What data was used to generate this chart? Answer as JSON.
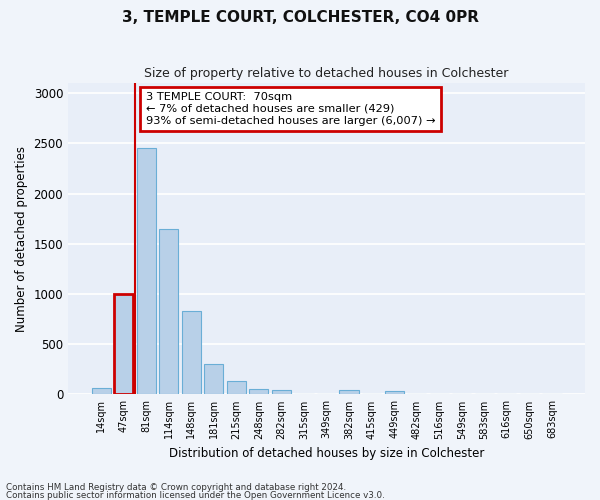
{
  "title": "3, TEMPLE COURT, COLCHESTER, CO4 0PR",
  "subtitle": "Size of property relative to detached houses in Colchester",
  "xlabel": "Distribution of detached houses by size in Colchester",
  "ylabel": "Number of detached properties",
  "bar_labels": [
    "14sqm",
    "47sqm",
    "81sqm",
    "114sqm",
    "148sqm",
    "181sqm",
    "215sqm",
    "248sqm",
    "282sqm",
    "315sqm",
    "349sqm",
    "382sqm",
    "415sqm",
    "449sqm",
    "482sqm",
    "516sqm",
    "549sqm",
    "583sqm",
    "616sqm",
    "650sqm",
    "683sqm"
  ],
  "bar_values": [
    60,
    1000,
    2450,
    1650,
    830,
    305,
    135,
    55,
    45,
    5,
    5,
    45,
    5,
    30,
    5,
    5,
    5,
    5,
    5,
    5,
    5
  ],
  "bar_color": "#b8d0e8",
  "bar_edge_color": "#6aaed6",
  "highlight_bar_index": 1,
  "highlight_bar_edge_color": "#cc0000",
  "vline_x": 1.5,
  "annotation_text": "3 TEMPLE COURT:  70sqm\n← 7% of detached houses are smaller (429)\n93% of semi-detached houses are larger (6,007) →",
  "annotation_box_facecolor": "#ffffff",
  "annotation_box_edgecolor": "#cc0000",
  "ylim": [
    0,
    3100
  ],
  "yticks": [
    0,
    500,
    1000,
    1500,
    2000,
    2500,
    3000
  ],
  "background_color": "#e8eef8",
  "grid_color": "#ffffff",
  "footer1": "Contains HM Land Registry data © Crown copyright and database right 2024.",
  "footer2": "Contains public sector information licensed under the Open Government Licence v3.0."
}
